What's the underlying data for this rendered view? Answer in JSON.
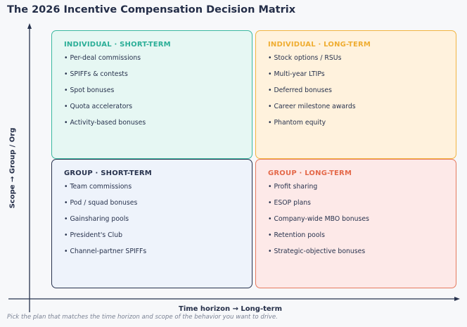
{
  "title": "The 2026 Incentive Compensation Decision Matrix",
  "axes": {
    "x_label": "Time horizon  →  Long-term",
    "y_label": "Scope  →  Group / Org"
  },
  "quadrants": {
    "top_left": {
      "heading": "INDIVIDUAL · SHORT-TERM",
      "color": "#2bae97",
      "items": [
        "Per-deal commissions",
        "SPIFFs & contests",
        "Spot bonuses",
        "Quota accelerators",
        "Activity-based bonuses"
      ]
    },
    "top_right": {
      "heading": "INDIVIDUAL · LONG-TERM",
      "color": "#efad32",
      "items": [
        "Stock options / RSUs",
        "Multi-year LTIPs",
        "Deferred bonuses",
        "Career milestone awards",
        "Phantom equity"
      ]
    },
    "bottom_left": {
      "heading": "GROUP · SHORT-TERM",
      "color": "#27324d",
      "items": [
        "Team commissions",
        "Pod / squad bonuses",
        "Gainsharing pools",
        "President's Club",
        "Channel-partner SPIFFs"
      ]
    },
    "bottom_right": {
      "heading": "GROUP · LONG-TERM",
      "color": "#e4694a",
      "items": [
        "Profit sharing",
        "ESOP plans",
        "Company-wide MBO bonuses",
        "Retention pools",
        "Strategic-objective bonuses"
      ]
    }
  },
  "footnote": "Pick the plan that matches the time horizon and scope of the behavior you want to drive."
}
